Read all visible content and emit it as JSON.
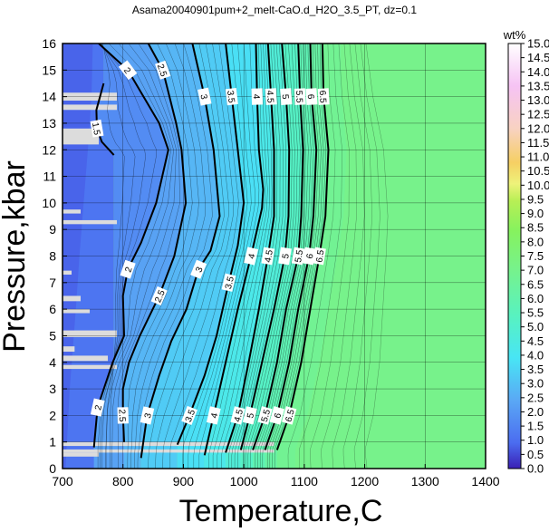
{
  "chart_data": {
    "type": "heatmap",
    "title": "Asama20040901pum+2_melt-CaO.d_H2O_3.5_PT, dz=0.1",
    "xlabel": "Temperature,C",
    "ylabel": "Pressure,kbar",
    "xlim": [
      700,
      1400
    ],
    "ylim": [
      0,
      16
    ],
    "x_ticks": [
      "700",
      "800",
      "900",
      "1000",
      "1100",
      "1200",
      "1300",
      "1400"
    ],
    "y_ticks": [
      "0",
      "1",
      "2",
      "3",
      "4",
      "5",
      "6",
      "7",
      "8",
      "9",
      "10",
      "11",
      "12",
      "13",
      "14",
      "15",
      "16"
    ],
    "grid": true,
    "colorbar": {
      "label": "wt%",
      "range": [
        0,
        15
      ],
      "ticks": [
        "0.0",
        "0.5",
        "1.0",
        "1.5",
        "2.0",
        "2.5",
        "3.0",
        "3.5",
        "4.0",
        "4.5",
        "5.0",
        "5.5",
        "6.0",
        "6.5",
        "7.0",
        "7.5",
        "8.0",
        "8.5",
        "9.0",
        "9.5",
        "10.0",
        "10.5",
        "11.0",
        "11.5",
        "12.0",
        "12.5",
        "13.0",
        "13.5",
        "14.0",
        "14.5",
        "15.0"
      ]
    },
    "saturated_field": {
      "value": 7.0,
      "color": "#77f28b"
    },
    "contours": [
      {
        "label": "1.5",
        "points": [
          [
            768,
            14.5
          ],
          [
            756,
            13.5
          ],
          [
            757,
            12.8
          ],
          [
            765,
            12.3
          ],
          [
            785,
            11.8
          ]
        ]
      },
      {
        "label": "2",
        "points": [
          [
            760,
            16
          ],
          [
            808,
            15
          ],
          [
            860,
            13
          ],
          [
            875,
            12
          ],
          [
            855,
            10
          ],
          [
            830,
            8.5
          ],
          [
            808,
            7.5
          ],
          [
            800,
            6.5
          ],
          [
            802,
            5
          ],
          [
            783,
            4
          ],
          [
            758,
            2.3
          ],
          [
            752,
            0.8
          ]
        ]
      },
      {
        "label": "2.5",
        "points": [
          [
            842,
            16
          ],
          [
            866,
            15
          ],
          [
            888,
            13
          ],
          [
            897,
            12
          ],
          [
            904,
            10
          ],
          [
            885,
            8
          ],
          [
            860,
            6.5
          ],
          [
            828,
            5
          ],
          [
            810,
            4
          ],
          [
            800,
            3
          ],
          [
            800,
            2
          ],
          [
            802,
            1
          ]
        ]
      },
      {
        "label": "3",
        "points": [
          [
            915,
            16
          ],
          [
            935,
            14
          ],
          [
            950,
            12
          ],
          [
            960,
            9.5
          ],
          [
            945,
            8.2
          ],
          [
            925,
            7.5
          ],
          [
            905,
            6
          ],
          [
            880,
            4.8
          ],
          [
            860,
            3.5
          ],
          [
            840,
            2
          ],
          [
            830,
            0.4
          ]
        ]
      },
      {
        "label": "3.5",
        "points": [
          [
            970,
            16
          ],
          [
            980,
            14
          ],
          [
            990,
            12
          ],
          [
            1000,
            10
          ],
          [
            990,
            8.4
          ],
          [
            975,
            7
          ],
          [
            955,
            5
          ],
          [
            935,
            3.5
          ],
          [
            910,
            2
          ],
          [
            890,
            0.9
          ]
        ]
      },
      {
        "label": "4",
        "points": [
          [
            1020,
            16
          ],
          [
            1022,
            14
          ],
          [
            1025,
            12
          ],
          [
            1032,
            10.5
          ],
          [
            1030,
            9.8
          ],
          [
            1012,
            8
          ],
          [
            990,
            6
          ],
          [
            970,
            4
          ],
          [
            950,
            2
          ],
          [
            935,
            0.5
          ]
        ]
      },
      {
        "label": "4.5",
        "points": [
          [
            1040,
            16
          ],
          [
            1045,
            14
          ],
          [
            1050,
            12
          ],
          [
            1050,
            9.5
          ],
          [
            1040,
            8
          ],
          [
            1025,
            6
          ],
          [
            1008,
            4
          ],
          [
            990,
            2
          ],
          [
            970,
            0.6
          ]
        ]
      },
      {
        "label": "5",
        "points": [
          [
            1063,
            16
          ],
          [
            1070,
            14
          ],
          [
            1075,
            12
          ],
          [
            1074,
            9.5
          ],
          [
            1068,
            8
          ],
          [
            1050,
            6
          ],
          [
            1030,
            4
          ],
          [
            1010,
            2
          ],
          [
            995,
            0.7
          ]
        ]
      },
      {
        "label": "5.5",
        "points": [
          [
            1090,
            16
          ],
          [
            1093,
            14
          ],
          [
            1098,
            12
          ],
          [
            1095,
            9.5
          ],
          [
            1090,
            8
          ],
          [
            1070,
            6
          ],
          [
            1055,
            4
          ],
          [
            1035,
            2
          ],
          [
            1015,
            0.7
          ]
        ]
      },
      {
        "label": "6",
        "points": [
          [
            1110,
            16
          ],
          [
            1112,
            14
          ],
          [
            1120,
            12
          ],
          [
            1115,
            9.5
          ],
          [
            1108,
            8
          ],
          [
            1090,
            6
          ],
          [
            1075,
            4
          ],
          [
            1055,
            2
          ],
          [
            1035,
            0.7
          ]
        ]
      },
      {
        "label": "6.5",
        "points": [
          [
            1130,
            16
          ],
          [
            1132,
            14
          ],
          [
            1140,
            12
          ],
          [
            1135,
            9.5
          ],
          [
            1125,
            8
          ],
          [
            1110,
            6
          ],
          [
            1095,
            4
          ],
          [
            1075,
            2
          ],
          [
            1055,
            0.7
          ]
        ]
      }
    ]
  }
}
